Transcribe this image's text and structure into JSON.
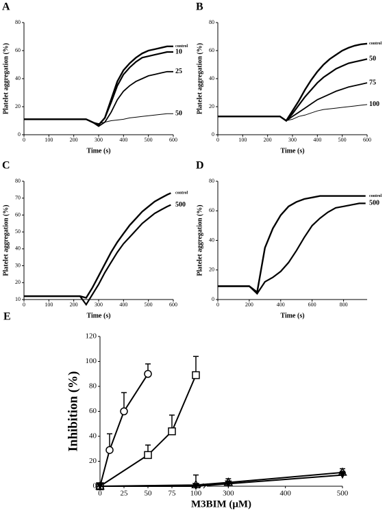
{
  "chart_data": [
    {
      "type": "line",
      "panel": "A",
      "ylabel": "Platelet aggregation (%)",
      "xlabel": "Time (s)",
      "xlim": [
        0,
        600
      ],
      "xticks": [
        0,
        100,
        200,
        300,
        400,
        500,
        600
      ],
      "ylim": [
        0,
        80
      ],
      "yticks": [
        0,
        20,
        40,
        60,
        80
      ],
      "x": [
        0,
        25,
        50,
        75,
        100,
        125,
        150,
        175,
        200,
        225,
        250,
        275,
        300,
        325,
        350,
        375,
        400,
        425,
        450,
        475,
        500,
        525,
        550,
        575,
        600
      ],
      "series": [
        {
          "name": "control",
          "color": "#000000",
          "values": [
            11,
            11,
            11,
            11,
            11,
            11,
            11,
            11,
            11,
            11,
            11,
            9,
            7,
            12,
            25,
            38,
            46,
            51,
            55,
            58,
            60,
            61,
            62,
            63,
            63
          ]
        },
        {
          "name": "10",
          "color": "#000000",
          "values": [
            11,
            11,
            11,
            11,
            11,
            11,
            11,
            11,
            11,
            11,
            11,
            9,
            7,
            12,
            23,
            35,
            43,
            48,
            52,
            55,
            56,
            57,
            58,
            59,
            59
          ]
        },
        {
          "name": "25",
          "color": "#000000",
          "values": [
            11,
            11,
            11,
            11,
            11,
            11,
            11,
            11,
            11,
            11,
            11,
            9,
            6,
            9,
            16,
            25,
            31,
            35,
            38,
            40,
            42,
            43,
            44,
            45,
            45
          ]
        },
        {
          "name": "50",
          "color": "#000000",
          "values": [
            11,
            11,
            11,
            11,
            11,
            11,
            11,
            11,
            11,
            11,
            11,
            9,
            8,
            9,
            10,
            10.5,
            11,
            12,
            12.5,
            13,
            13.5,
            14,
            14.5,
            15,
            15
          ]
        }
      ]
    },
    {
      "type": "line",
      "panel": "B",
      "ylabel": "Platelet aggregation (%)",
      "xlabel": "Time (s)",
      "xlim": [
        0,
        600
      ],
      "xticks": [
        0,
        100,
        200,
        300,
        400,
        500,
        600
      ],
      "ylim": [
        0,
        80
      ],
      "yticks": [
        0,
        20,
        40,
        60,
        80
      ],
      "x": [
        0,
        25,
        50,
        75,
        100,
        125,
        150,
        175,
        200,
        225,
        250,
        275,
        300,
        325,
        350,
        375,
        400,
        425,
        450,
        475,
        500,
        525,
        550,
        575,
        600
      ],
      "series": [
        {
          "name": "control",
          "color": "#000000",
          "values": [
            13,
            13,
            13,
            13,
            13,
            13,
            13,
            13,
            13,
            13,
            13,
            10,
            17,
            24,
            32,
            39,
            45,
            50,
            54,
            57,
            60,
            62,
            63.5,
            64.5,
            65
          ]
        },
        {
          "name": "50",
          "color": "#000000",
          "values": [
            13,
            13,
            13,
            13,
            13,
            13,
            13,
            13,
            13,
            13,
            13,
            10,
            15,
            21,
            27,
            32,
            37,
            41,
            44,
            47,
            49,
            51,
            52,
            53,
            54
          ]
        },
        {
          "name": "75",
          "color": "#000000",
          "values": [
            13,
            13,
            13,
            13,
            13,
            13,
            13,
            13,
            13,
            13,
            13,
            10,
            13,
            16,
            19,
            22,
            25,
            27,
            29,
            31,
            32.5,
            34,
            35,
            36,
            37
          ]
        },
        {
          "name": "100",
          "color": "#000000",
          "values": [
            13,
            13,
            13,
            13,
            13,
            13,
            13,
            13,
            13,
            13,
            13,
            10,
            11,
            13,
            14,
            15.5,
            17,
            18,
            18.5,
            19,
            19.5,
            20,
            20.5,
            21,
            21.5
          ]
        }
      ]
    },
    {
      "type": "line",
      "panel": "C",
      "ylabel": "Platelet aggregation (%)",
      "xlabel": "Time (s)",
      "xlim": [
        0,
        600
      ],
      "xticks": [
        0,
        100,
        200,
        300,
        400,
        500,
        600
      ],
      "ylim": [
        10,
        80
      ],
      "yticks": [
        10,
        20,
        30,
        40,
        50,
        60,
        70,
        80
      ],
      "x": [
        0,
        25,
        50,
        75,
        100,
        125,
        150,
        175,
        200,
        225,
        250,
        275,
        300,
        325,
        350,
        375,
        400,
        425,
        450,
        475,
        500,
        525,
        550,
        575,
        590
      ],
      "series": [
        {
          "name": "control",
          "color": "#000000",
          "values": [
            12,
            12,
            12,
            12,
            12,
            12,
            12,
            12,
            12,
            12,
            11,
            17,
            24,
            31,
            38,
            44,
            49,
            54,
            58,
            62,
            65,
            68,
            70,
            72,
            73
          ]
        },
        {
          "name": "500",
          "color": "#000000",
          "values": [
            12,
            12,
            12,
            12,
            12,
            12,
            12,
            12,
            12,
            12,
            7,
            13,
            19,
            26,
            32,
            38,
            43,
            47,
            51,
            55,
            58,
            61,
            63,
            65,
            66
          ]
        }
      ]
    },
    {
      "type": "line",
      "panel": "D",
      "ylabel": "Platelet aggregation (%)",
      "xlabel": "Time (s)",
      "xlim": [
        0,
        950
      ],
      "xticks": [
        0,
        200,
        400,
        600,
        800
      ],
      "ylim": [
        0,
        80
      ],
      "yticks": [
        0,
        20,
        40,
        60,
        80
      ],
      "x": [
        0,
        50,
        100,
        150,
        200,
        250,
        300,
        350,
        400,
        450,
        500,
        550,
        600,
        650,
        700,
        750,
        800,
        850,
        900,
        940
      ],
      "series": [
        {
          "name": "control",
          "color": "#000000",
          "values": [
            9,
            9,
            9,
            9,
            9,
            5,
            35,
            48,
            57,
            63,
            66,
            68,
            69,
            70,
            70,
            70,
            70,
            70,
            70,
            70
          ]
        },
        {
          "name": "500",
          "color": "#000000",
          "values": [
            9,
            9,
            9,
            9,
            9,
            4,
            12,
            15,
            19,
            25,
            33,
            42,
            50,
            55,
            59,
            62,
            63,
            64,
            65,
            65
          ]
        }
      ]
    },
    {
      "type": "errorline",
      "panel": "E",
      "ylabel": "Inhibition (%)",
      "xlabel": "M3BIM (μM)",
      "xlim": [
        0,
        500
      ],
      "x_break": [
        105,
        260
      ],
      "xticks": [
        0,
        25,
        50,
        75,
        100,
        300,
        400,
        500
      ],
      "ylim": [
        0,
        120
      ],
      "yticks": [
        0,
        20,
        40,
        60,
        80,
        100,
        120
      ],
      "series": [
        {
          "marker": "circle",
          "color": "#000000",
          "x": [
            0,
            10,
            25,
            50
          ],
          "values": [
            0,
            29,
            60,
            90
          ],
          "errors": [
            0,
            13,
            15,
            8
          ]
        },
        {
          "marker": "square",
          "color": "#000000",
          "x": [
            0,
            50,
            75,
            100
          ],
          "values": [
            0,
            25,
            44,
            89
          ],
          "errors": [
            0,
            8,
            13,
            15
          ]
        },
        {
          "marker": "triangle",
          "color": "#000000",
          "x": [
            0,
            100,
            300,
            500
          ],
          "values": [
            0,
            1,
            3,
            11
          ],
          "errors": [
            0,
            8,
            3,
            3
          ]
        },
        {
          "marker": "diamond",
          "color": "#000000",
          "x": [
            0,
            100,
            300,
            500
          ],
          "values": [
            0,
            0,
            2,
            9
          ],
          "errors": [
            0,
            0,
            2,
            3
          ]
        }
      ]
    }
  ]
}
